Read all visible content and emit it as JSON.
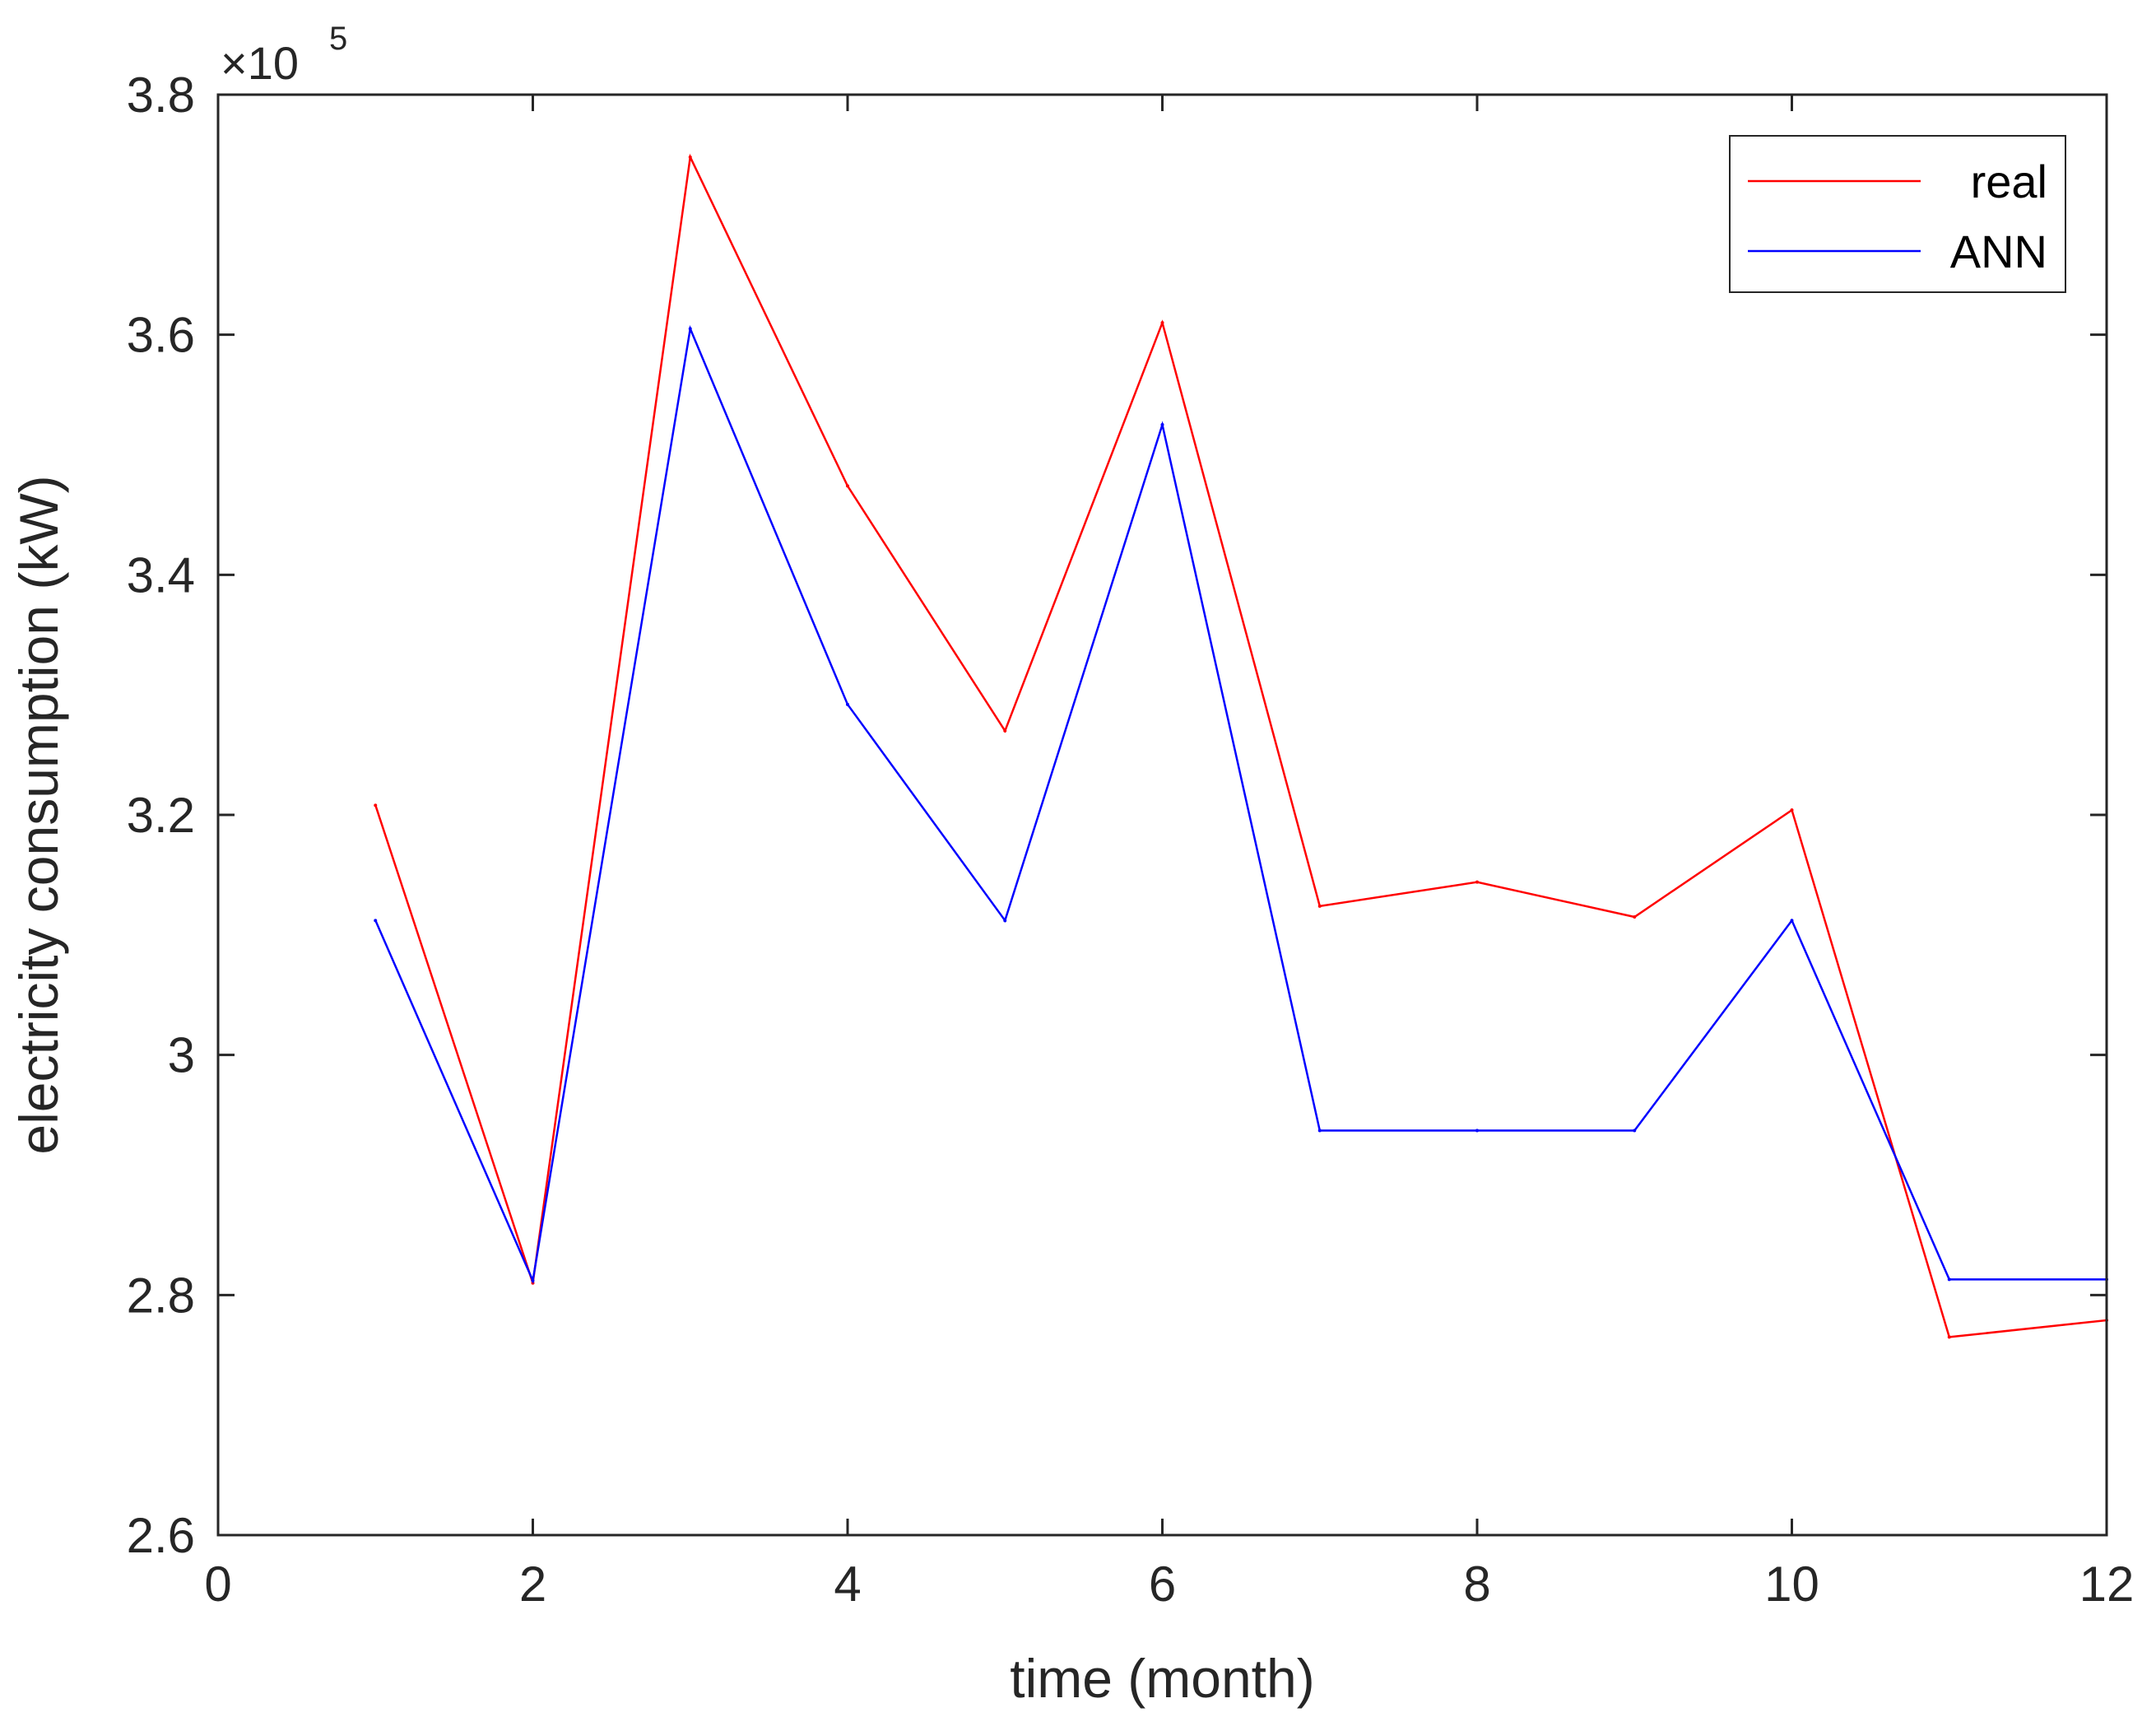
{
  "chart_data": {
    "type": "line",
    "xlabel": "time (month)",
    "ylabel": "electricity consumption (kW)",
    "y_multiplier": "×10",
    "y_multiplier_exponent": "5",
    "xlim": [
      0,
      12
    ],
    "ylim": [
      2.6,
      3.8
    ],
    "xticks": [
      0,
      2,
      4,
      6,
      8,
      10,
      12
    ],
    "xtick_labels": [
      "0",
      "2",
      "4",
      "6",
      "8",
      "10",
      "12"
    ],
    "yticks": [
      2.6,
      2.8,
      3.0,
      3.2,
      3.4,
      3.6,
      3.8
    ],
    "ytick_labels": [
      "2.6",
      "2.8",
      "3",
      "3.2",
      "3.4",
      "3.6",
      "3.8"
    ],
    "grid": false,
    "legend_position": "top-right",
    "x": [
      1,
      2,
      3,
      4,
      5,
      6,
      7,
      8,
      9,
      10,
      11,
      12
    ],
    "series": [
      {
        "name": "real",
        "color": "#ff0000",
        "values": [
          3.208,
          2.81,
          3.748,
          3.474,
          3.27,
          3.61,
          3.124,
          3.144,
          3.115,
          3.204,
          2.765,
          2.779
        ]
      },
      {
        "name": "ANN",
        "color": "#0000ff",
        "values": [
          3.112,
          2.812,
          3.605,
          3.292,
          3.112,
          3.525,
          2.937,
          2.937,
          2.937,
          3.112,
          2.813,
          2.813
        ]
      }
    ]
  }
}
